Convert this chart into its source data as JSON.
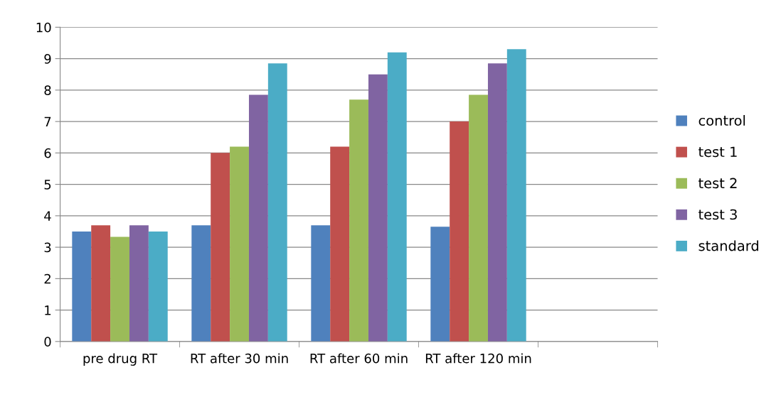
{
  "chart_data": {
    "type": "bar",
    "categories": [
      "pre drug RT",
      "RT after 30 min",
      "RT after 60 min",
      "RT after 120 min",
      null
    ],
    "series": [
      {
        "name": "control",
        "color": "#4f81bd",
        "values": [
          3.5,
          3.7,
          3.7,
          3.65,
          null
        ]
      },
      {
        "name": "test 1",
        "color": "#c0504d",
        "values": [
          3.7,
          6.0,
          6.2,
          7.0,
          null
        ]
      },
      {
        "name": "test 2",
        "color": "#9bbb59",
        "values": [
          3.33,
          6.2,
          7.7,
          7.85,
          null
        ]
      },
      {
        "name": "test 3",
        "color": "#8064a2",
        "values": [
          3.7,
          7.85,
          8.5,
          8.85,
          null
        ]
      },
      {
        "name": "standard",
        "color": "#4bacc6",
        "values": [
          3.5,
          8.85,
          9.2,
          9.3,
          null
        ]
      }
    ],
    "ylim": [
      0,
      10
    ],
    "yticks": [
      0,
      1,
      2,
      3,
      4,
      5,
      6,
      7,
      8,
      9,
      10
    ],
    "grid": "y",
    "legend": "right"
  }
}
